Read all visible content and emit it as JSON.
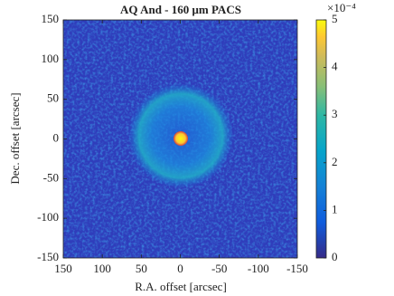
{
  "chart_data": {
    "type": "image",
    "title": "AQ And - 160 μm PACS",
    "x_label": "R.A. offset [arcsec]",
    "y_label": "Dec. offset [arcsec]",
    "xlim": [
      150,
      -150
    ],
    "xticks": [
      150,
      100,
      50,
      0,
      -50,
      -100,
      -150
    ],
    "ylim": [
      -150,
      150
    ],
    "yticks": [
      -150,
      -100,
      -50,
      0,
      50,
      100,
      150
    ],
    "colormap": "parula",
    "clim": [
      0,
      5
    ],
    "cticks": [
      0,
      1,
      2,
      3,
      4,
      5
    ],
    "colorbar_multiplier": "×10⁻⁴"
  }
}
